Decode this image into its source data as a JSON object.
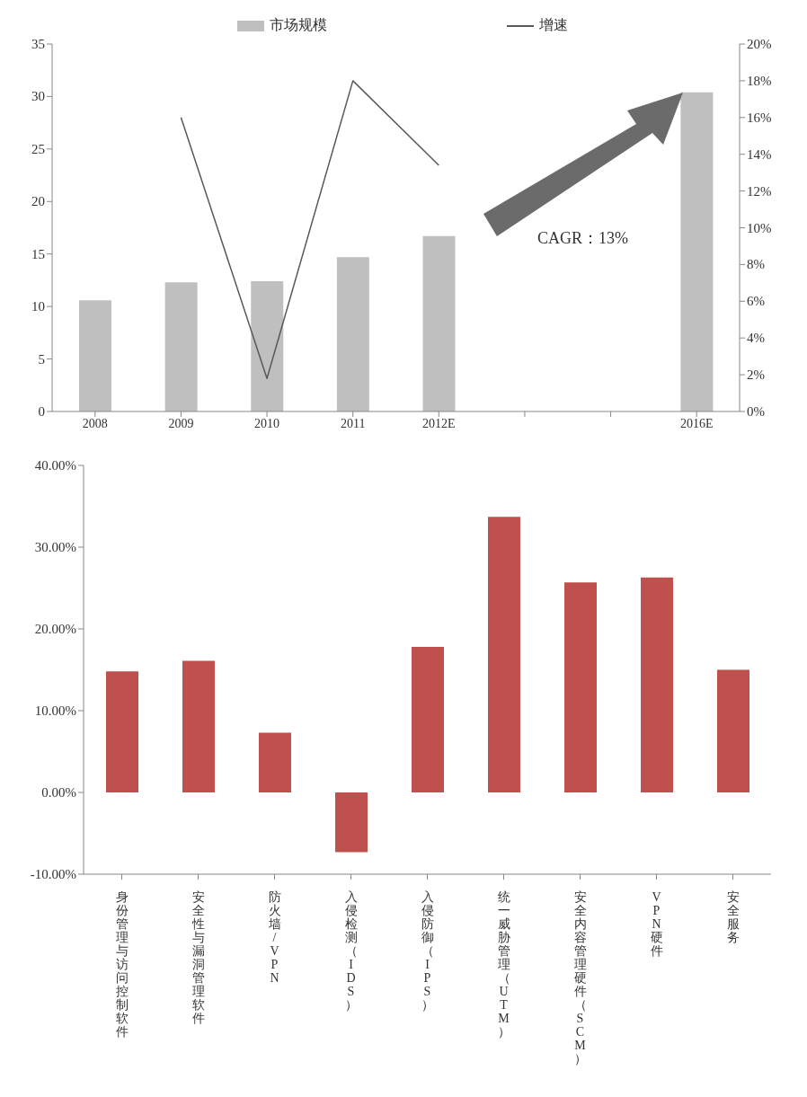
{
  "chart_data": [
    {
      "type": "bar",
      "categories": [
        "2008",
        "2009",
        "2010",
        "2011",
        "2012E",
        null,
        null,
        "2016E"
      ],
      "series": [
        {
          "name": "市场规模",
          "color": "#bfbfbf",
          "values": [
            10.6,
            12.3,
            12.4,
            14.7,
            16.7,
            null,
            null,
            30.4
          ]
        },
        {
          "name": "增速",
          "type": "line",
          "axis": "y2",
          "color": "#595959",
          "values": [
            null,
            16,
            1.8,
            18,
            13.4,
            null,
            null,
            null
          ]
        }
      ],
      "ylim": [
        0,
        35
      ],
      "yticks": [
        0,
        5,
        10,
        15,
        20,
        25,
        30,
        35
      ],
      "y2lim": [
        0,
        20
      ],
      "y2ticks": [
        {
          "value": 0,
          "label": "0%"
        },
        {
          "value": 2,
          "label": "2%"
        },
        {
          "value": 4,
          "label": "4%"
        },
        {
          "value": 6,
          "label": "6%"
        },
        {
          "value": 8,
          "label": "8%"
        },
        {
          "value": 10,
          "label": "10%"
        },
        {
          "value": 12,
          "label": "12%"
        },
        {
          "value": 14,
          "label": "14%"
        },
        {
          "value": 16,
          "label": "16%"
        },
        {
          "value": 18,
          "label": "18%"
        },
        {
          "value": 20,
          "label": "20%"
        }
      ],
      "annotations": [
        "CAGR：13%"
      ],
      "legend": "top",
      "grid": false,
      "marker": "none"
    },
    {
      "type": "bar",
      "categories": [
        "身份管理与访问控制软件",
        "安全性与漏洞管理软件",
        "防火墙/VPN",
        "入侵检测（IDS）",
        "入侵防御（IPS）",
        "统一威胁管理（UTM）",
        "安全内容管理硬件（SCM）",
        "VPN硬件",
        "安全服务"
      ],
      "values": [
        14.8,
        16.1,
        7.3,
        -7.3,
        17.8,
        33.7,
        25.7,
        26.3,
        15.0
      ],
      "color": "#c0504d",
      "ylim": [
        -10,
        40
      ],
      "yticks": [
        {
          "value": -10,
          "label": "-10.00%"
        },
        {
          "value": 0,
          "label": "0.00%"
        },
        {
          "value": 10,
          "label": "10.00%"
        },
        {
          "value": 20,
          "label": "20.00%"
        },
        {
          "value": 30,
          "label": "30.00%"
        },
        {
          "value": 40,
          "label": "40.00%"
        }
      ],
      "grid": false
    }
  ]
}
